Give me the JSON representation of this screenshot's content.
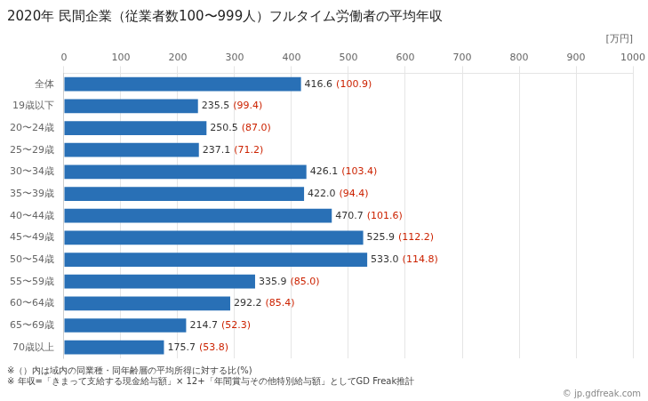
{
  "chart_data": {
    "type": "bar",
    "orientation": "horizontal",
    "title": "2020年 民間企業（従業者数100〜999人）フルタイム労働者の平均年収",
    "xlabel": "[万円]",
    "categories": [
      "全体",
      "19歳以下",
      "20〜24歳",
      "25〜29歳",
      "30〜34歳",
      "35〜39歳",
      "40〜44歳",
      "45〜49歳",
      "50〜54歳",
      "55〜59歳",
      "60〜64歳",
      "65〜69歳",
      "70歳以上"
    ],
    "values": [
      416.6,
      235.5,
      250.5,
      237.1,
      426.1,
      422.0,
      470.7,
      525.9,
      533.0,
      335.9,
      292.2,
      214.7,
      175.7
    ],
    "value_labels": [
      "416.6",
      "235.5",
      "250.5",
      "237.1",
      "426.1",
      "422.0",
      "470.7",
      "525.9",
      "533.0",
      "335.9",
      "292.2",
      "214.7",
      "175.7"
    ],
    "percentages": [
      100.9,
      99.4,
      87.0,
      71.2,
      103.4,
      94.4,
      101.6,
      112.2,
      114.8,
      85.0,
      85.4,
      52.3,
      53.8
    ],
    "percentage_labels": [
      "(100.9)",
      "(99.4)",
      "(87.0)",
      "(71.2)",
      "(103.4)",
      "(94.4)",
      "(101.6)",
      "(112.2)",
      "(114.8)",
      "(85.0)",
      "(85.4)",
      "(52.3)",
      "(53.8)"
    ],
    "color": "#2970b6",
    "xlim": [
      0,
      1000
    ],
    "xticks": [
      0,
      100,
      200,
      300,
      400,
      500,
      600,
      700,
      800,
      900,
      1000
    ],
    "grid": true,
    "data_labels": true,
    "annotations": [
      "※（）内は域内の同業種・同年齢層の平均所得に対する比(%)",
      "※ 年収=「きまって支給する現金給与額」× 12+「年間賞与その他特別給与額」としてGD Freak推計",
      "© jp.gdfreak.com"
    ]
  }
}
